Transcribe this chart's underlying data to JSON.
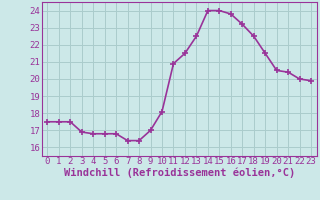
{
  "x": [
    0,
    1,
    2,
    3,
    4,
    5,
    6,
    7,
    8,
    9,
    10,
    11,
    12,
    13,
    14,
    15,
    16,
    17,
    18,
    19,
    20,
    21,
    22,
    23
  ],
  "y": [
    17.5,
    17.5,
    17.5,
    16.9,
    16.8,
    16.8,
    16.8,
    16.4,
    16.4,
    17.0,
    18.1,
    20.9,
    21.5,
    22.5,
    24.0,
    24.0,
    23.8,
    23.2,
    22.5,
    21.5,
    20.5,
    20.4,
    20.0,
    19.9
  ],
  "line_color": "#993399",
  "marker": "+",
  "marker_size": 4,
  "marker_linewidth": 1.2,
  "bg_color": "#cce8e8",
  "grid_color": "#aacccc",
  "xlabel": "Windchill (Refroidissement éolien,°C)",
  "xlim": [
    -0.5,
    23.5
  ],
  "ylim": [
    15.5,
    24.5
  ],
  "yticks": [
    16,
    17,
    18,
    19,
    20,
    21,
    22,
    23,
    24
  ],
  "xticks": [
    0,
    1,
    2,
    3,
    4,
    5,
    6,
    7,
    8,
    9,
    10,
    11,
    12,
    13,
    14,
    15,
    16,
    17,
    18,
    19,
    20,
    21,
    22,
    23
  ],
  "font_color": "#993399",
  "linewidth": 1.2,
  "tick_fontsize": 6.5,
  "xlabel_fontsize": 7.5
}
